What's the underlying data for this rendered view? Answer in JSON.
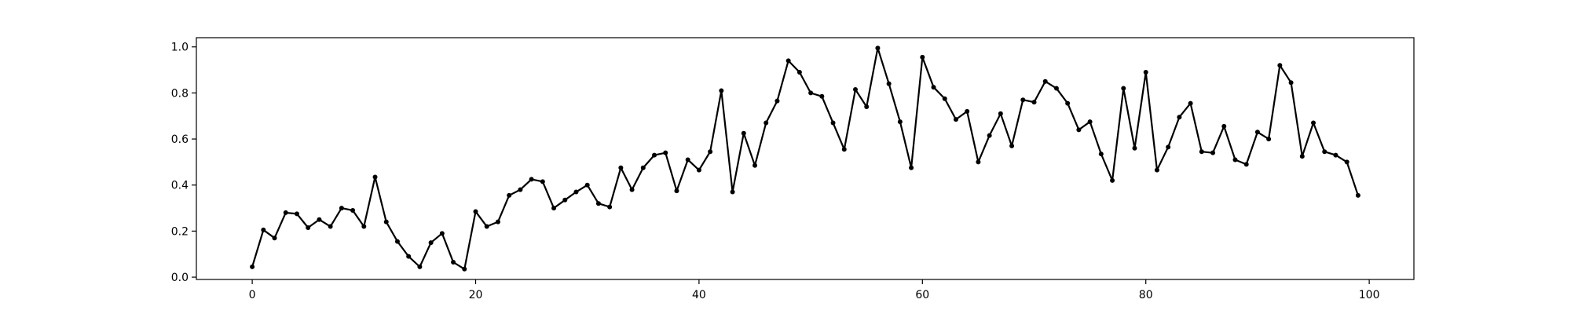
{
  "chart_data": {
    "type": "line",
    "title": "",
    "xlabel": "",
    "ylabel": "",
    "xlim": [
      -5,
      104
    ],
    "ylim": [
      -0.01,
      1.04
    ],
    "x_ticks": [
      0,
      20,
      40,
      60,
      80,
      100
    ],
    "y_ticks": [
      0.0,
      0.2,
      0.4,
      0.6,
      0.8,
      1.0
    ],
    "x_tick_labels": [
      "0",
      "20",
      "40",
      "60",
      "80",
      "100"
    ],
    "y_tick_labels": [
      "0.0",
      "0.2",
      "0.4",
      "0.6",
      "0.8",
      "1.0"
    ],
    "grid": false,
    "legend": "none",
    "colors": {
      "line": "#000000",
      "marker": "#000000",
      "frame": "#000000",
      "background": "#ffffff"
    },
    "marker": "circle",
    "series": [
      {
        "x": [
          0,
          1,
          2,
          3,
          4,
          5,
          6,
          7,
          8,
          9,
          10,
          11,
          12,
          13,
          14,
          15,
          16,
          17,
          18,
          19,
          20,
          21,
          22,
          23,
          24,
          25,
          26,
          27,
          28,
          29,
          30,
          31,
          32,
          33,
          34,
          35,
          36,
          37,
          38,
          39,
          40,
          41,
          42,
          43,
          44,
          45,
          46,
          47,
          48,
          49,
          50,
          51,
          52,
          53,
          54,
          55,
          56,
          57,
          58,
          59,
          60,
          61,
          62,
          63,
          64,
          65,
          66,
          67,
          68,
          69,
          70,
          71,
          72,
          73,
          74,
          75,
          76,
          77,
          78,
          79,
          80,
          81,
          82,
          83,
          84,
          85,
          86,
          87,
          88,
          89,
          90,
          91,
          92,
          93,
          94,
          95,
          96,
          97,
          98,
          99
        ],
        "values": [
          0.045,
          0.205,
          0.17,
          0.28,
          0.275,
          0.215,
          0.25,
          0.22,
          0.3,
          0.29,
          0.22,
          0.435,
          0.24,
          0.155,
          0.09,
          0.045,
          0.15,
          0.19,
          0.065,
          0.035,
          0.285,
          0.22,
          0.24,
          0.355,
          0.38,
          0.425,
          0.415,
          0.3,
          0.335,
          0.37,
          0.4,
          0.32,
          0.305,
          0.475,
          0.38,
          0.475,
          0.53,
          0.54,
          0.375,
          0.51,
          0.465,
          0.545,
          0.81,
          0.37,
          0.625,
          0.485,
          0.67,
          0.765,
          0.94,
          0.89,
          0.8,
          0.785,
          0.67,
          0.555,
          0.815,
          0.74,
          0.995,
          0.84,
          0.675,
          0.475,
          0.955,
          0.825,
          0.775,
          0.685,
          0.72,
          0.5,
          0.615,
          0.71,
          0.57,
          0.77,
          0.76,
          0.85,
          0.82,
          0.755,
          0.64,
          0.675,
          0.535,
          0.42,
          0.82,
          0.56,
          0.89,
          0.465,
          0.565,
          0.695,
          0.755,
          0.545,
          0.54,
          0.655,
          0.51,
          0.49,
          0.63,
          0.6,
          0.92,
          0.845,
          0.525,
          0.67,
          0.545,
          0.53,
          0.5,
          0.355
        ]
      }
    ]
  }
}
